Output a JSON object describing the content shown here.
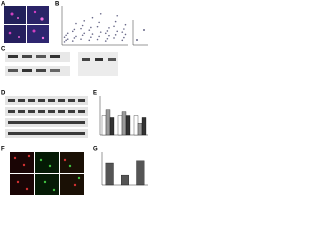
{
  "panel_labels": [
    "A",
    "B",
    "C",
    "D",
    "E",
    "F",
    "G"
  ],
  "panel_b": {
    "ylim": [
      0,
      100
    ],
    "color": "#6a6a8a",
    "groups": [
      [
        8,
        12,
        15,
        20,
        25,
        30
      ],
      [
        10,
        18,
        22,
        35,
        40,
        55
      ],
      [
        15,
        25,
        30,
        42,
        50,
        62
      ],
      [
        12,
        20,
        28,
        38,
        45,
        70
      ],
      [
        14,
        22,
        33,
        47,
        58,
        80
      ],
      [
        10,
        16,
        24,
        30,
        36,
        44
      ],
      [
        18,
        26,
        35,
        48,
        60,
        75
      ],
      [
        12,
        19,
        27,
        33,
        41,
        52
      ]
    ],
    "inset": [
      20,
      60
    ]
  },
  "panel_e": {
    "ylim": [
      0,
      2
    ],
    "series": [
      {
        "color": "#ffffff",
        "values": [
          1,
          1,
          1
        ]
      },
      {
        "color": "#9a9a9a",
        "values": [
          1.3,
          1.2,
          0.6
        ]
      },
      {
        "color": "#333333",
        "values": [
          0.9,
          1.0,
          0.9
        ]
      }
    ]
  },
  "panel_g": {
    "ylim": [
      0,
      1.5
    ],
    "color": "#555555",
    "values": [
      1.0,
      0.45,
      1.1
    ]
  }
}
